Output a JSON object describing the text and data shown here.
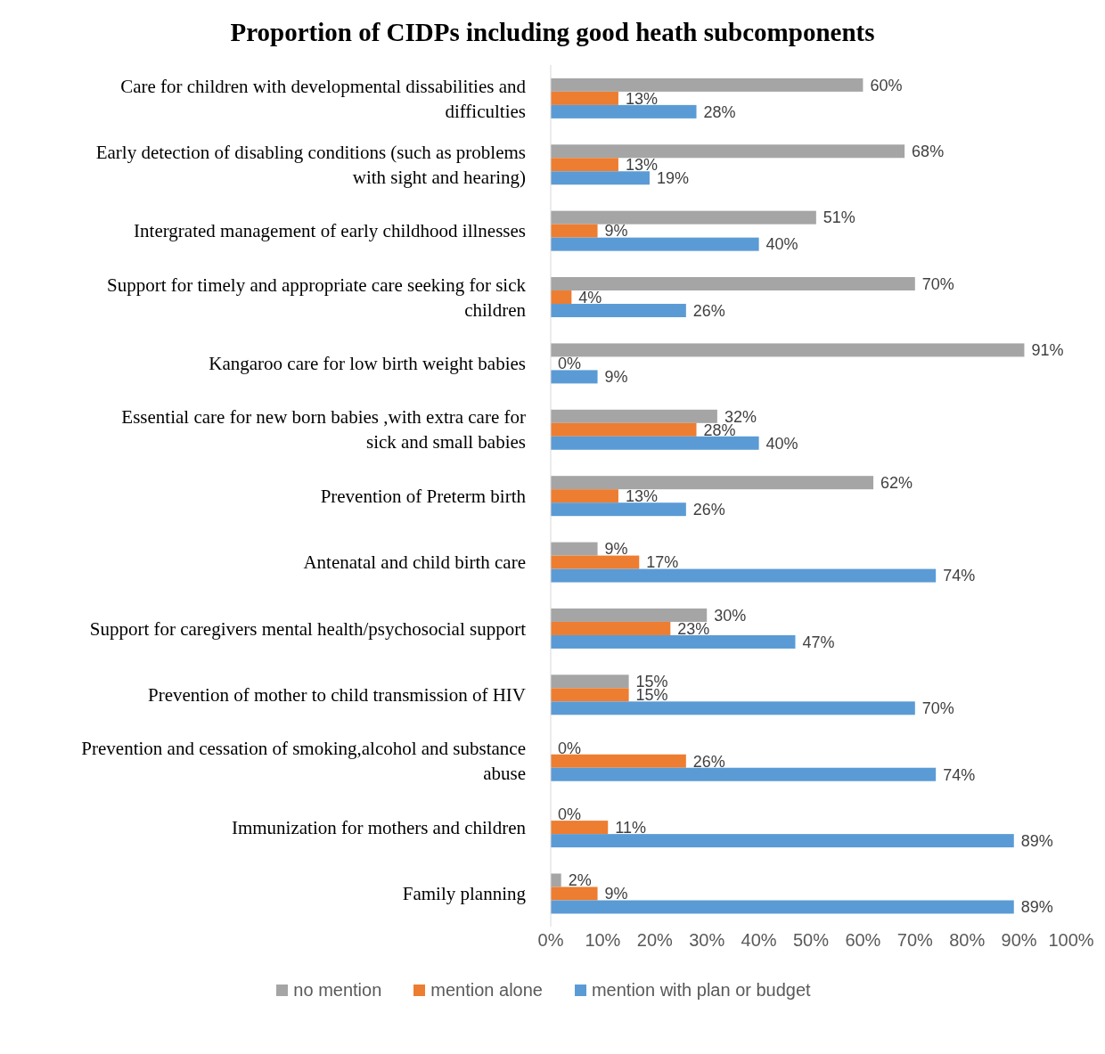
{
  "chart_data": {
    "type": "bar",
    "orientation": "horizontal",
    "title": "Proportion of CIDPs including good heath subcomponents",
    "categories": [
      "Care for children with developmental dissabilities and difficulties",
      "Early detection of disabling conditions (such as problems with sight and hearing)",
      "Intergrated management of early childhood illnesses",
      "Support for timely and appropriate care seeking for sick children",
      "Kangaroo care for low birth weight babies",
      "Essential care for new born babies ,with extra care for sick and small babies",
      "Prevention of Preterm birth",
      "Antenatal and child birth care",
      "Support for caregivers mental health/psychosocial support",
      "Prevention of mother to child transmission of HIV",
      "Prevention and cessation of smoking,alcohol and substance abuse",
      "Immunization for mothers and children",
      "Family planning"
    ],
    "series": [
      {
        "name": "no mention",
        "color": "#a5a5a5",
        "values": [
          60,
          68,
          51,
          70,
          91,
          32,
          62,
          9,
          30,
          15,
          0,
          0,
          2
        ],
        "value_labels": [
          "60%",
          "68%",
          "51%",
          "70%",
          "91%",
          "32%",
          "62%",
          "9%",
          "30%",
          "15%",
          "0%",
          "0%",
          "2%"
        ]
      },
      {
        "name": "mention alone",
        "color": "#ed7d31",
        "values": [
          13,
          13,
          9,
          4,
          0,
          28,
          13,
          17,
          23,
          15,
          26,
          11,
          9
        ],
        "value_labels": [
          "13%",
          "13%",
          "9%",
          "4%",
          "0%",
          "28%",
          "13%",
          "17%",
          "23%",
          "15%",
          "26%",
          "11%",
          "9%"
        ]
      },
      {
        "name": "mention with plan or budget",
        "color": "#5b9bd5",
        "values": [
          28,
          19,
          40,
          26,
          9,
          40,
          26,
          74,
          47,
          70,
          74,
          89,
          89
        ],
        "value_labels": [
          "28%",
          "19%",
          "40%",
          "26%",
          "9%",
          "40%",
          "26%",
          "74%",
          "47%",
          "70%",
          "74%",
          "89%",
          "89%"
        ]
      }
    ],
    "xlim": [
      0,
      100
    ],
    "xticks": [
      {
        "value": 0,
        "label": "0%"
      },
      {
        "value": 10,
        "label": "10%"
      },
      {
        "value": 20,
        "label": "20%"
      },
      {
        "value": 30,
        "label": "30%"
      },
      {
        "value": 40,
        "label": "40%"
      },
      {
        "value": 50,
        "label": "50%"
      },
      {
        "value": 60,
        "label": "60%"
      },
      {
        "value": 70,
        "label": "70%"
      },
      {
        "value": 80,
        "label": "80%"
      },
      {
        "value": 90,
        "label": "90%"
      },
      {
        "value": 100,
        "label": "100%"
      }
    ],
    "grid": false,
    "legend": "bottom"
  }
}
